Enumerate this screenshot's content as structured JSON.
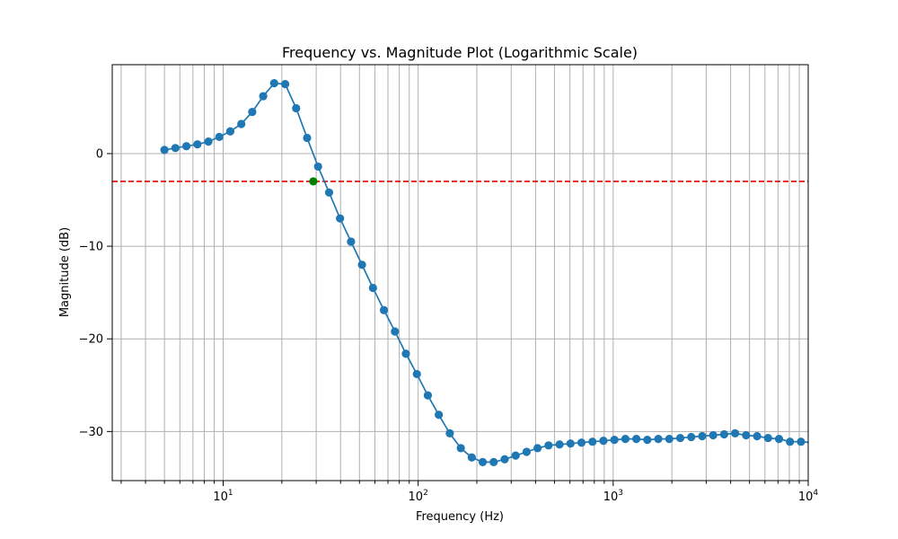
{
  "chart_data": {
    "type": "line",
    "title": "Frequency vs. Magnitude Plot (Logarithmic Scale)",
    "xlabel": "Frequency (Hz)",
    "ylabel": "Magnitude (dB)",
    "xscale": "log",
    "xlim": [
      2.7,
      10000
    ],
    "ylim": [
      -35.3,
      9.6
    ],
    "grid": "major and minor, both axes",
    "x_tick_labels": [
      "10",
      "10",
      "10",
      "10"
    ],
    "x_tick_exponents": [
      "1",
      "2",
      "3",
      "4"
    ],
    "x_ticks": [
      10,
      100,
      1000,
      10000
    ],
    "y_tick_labels": [
      "0",
      "−10",
      "−20",
      "−30"
    ],
    "y_ticks": [
      0,
      -10,
      -20,
      -30
    ],
    "colors": {
      "series": "#1f77b4",
      "threshold": "#e00000",
      "marker": "#008000",
      "grid": "#b0b0b0"
    },
    "series": [
      {
        "x": [
          5,
          5.69,
          6.48,
          7.38,
          8.4,
          9.56,
          10.88,
          12.39,
          14.1,
          16.05,
          18.27,
          20.8,
          23.68,
          26.95,
          30.68,
          34.93,
          39.76,
          45.26,
          51.52,
          58.65,
          66.76,
          76.0,
          86.51,
          98.48,
          112.1,
          127.6,
          145.3,
          165.4,
          188.3,
          214.3,
          243.9,
          277.7,
          316.1,
          359.8,
          409.6,
          466.3,
          530.8,
          604.2,
          687.8,
          783.0,
          891.3,
          1014.6,
          1155.0,
          1314.8,
          1496.6,
          1703.7,
          1939.3,
          2207.6,
          2513.0,
          2860.7,
          3256.4,
          3706.9,
          4219.7,
          4803.4,
          5468.0,
          6224.4,
          7085.5,
          8065.7,
          9181.5,
          10451.7
        ],
        "y": [
          0.4,
          0.6,
          0.8,
          1.0,
          1.3,
          1.8,
          2.4,
          3.2,
          4.5,
          6.2,
          7.6,
          7.5,
          4.9,
          1.7,
          -1.4,
          -4.2,
          -7.0,
          -9.5,
          -12.0,
          -14.5,
          -16.9,
          -19.2,
          -21.6,
          -23.8,
          -26.1,
          -28.2,
          -30.2,
          -31.8,
          -32.8,
          -33.3,
          -33.3,
          -33.0,
          -32.6,
          -32.2,
          -31.8,
          -31.5,
          -31.4,
          -31.3,
          -31.2,
          -31.1,
          -31.0,
          -30.9,
          -30.8,
          -30.8,
          -30.9,
          -30.8,
          -30.8,
          -30.7,
          -30.6,
          -30.5,
          -30.4,
          -30.3,
          -30.2,
          -30.4,
          -30.5,
          -30.7,
          -30.8,
          -31.1,
          -31.1,
          -31.2
        ]
      }
    ],
    "threshold_y": -3,
    "crossing_point": {
      "x": 29.0,
      "y": -3.0
    }
  }
}
